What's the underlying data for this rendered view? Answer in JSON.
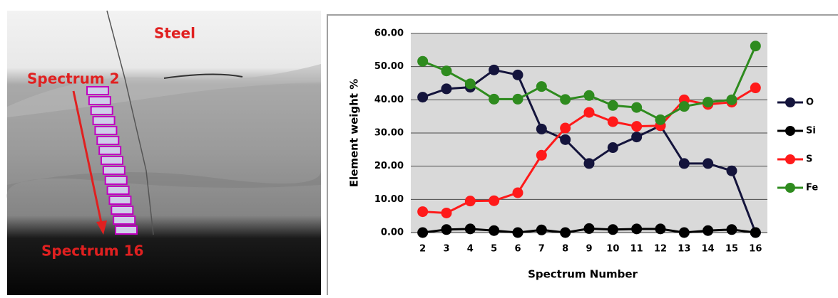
{
  "image": {
    "labels": [
      "Steel",
      "Spectrum 2",
      "Spectrum 16"
    ]
  },
  "chart_data": {
    "type": "line",
    "x_label": "Spectrum Number",
    "y_label": "Element weight %",
    "categories": [
      "2",
      "3",
      "4",
      "5",
      "6",
      "7",
      "8",
      "9",
      "10",
      "11",
      "12",
      "13",
      "14",
      "15",
      "16"
    ],
    "series": [
      {
        "name": "O",
        "color": "#14143c",
        "values": [
          40.8,
          43.3,
          43.8,
          49,
          47.5,
          31.2,
          28,
          20.8,
          25.6,
          28.8,
          32.2,
          20.8,
          20.8,
          18.6,
          0
        ]
      },
      {
        "name": "Si",
        "color": "#000000",
        "values": [
          0,
          0.9,
          1.1,
          0.6,
          0,
          0.8,
          0,
          1.2,
          0.9,
          1.1,
          1.1,
          0,
          0.6,
          0.9,
          0
        ]
      },
      {
        "name": "S",
        "color": "#ff1a1a",
        "values": [
          6.3,
          5.9,
          9.5,
          9.6,
          12,
          23.3,
          31.5,
          36.2,
          33.4,
          32,
          32.2,
          40,
          38.6,
          39.3,
          43.6
        ]
      },
      {
        "name": "Fe",
        "color": "#2e8b1e",
        "values": [
          51.6,
          48.7,
          44.8,
          40.2,
          40.2,
          44,
          40.1,
          41.3,
          38.3,
          37.7,
          34,
          38,
          39.3,
          40,
          56.2
        ]
      }
    ],
    "ylim": [
      0,
      60
    ],
    "yticks": [
      {
        "value": 0,
        "label": "0.00"
      },
      {
        "value": 10,
        "label": "10.00"
      },
      {
        "value": 20,
        "label": "20.00"
      },
      {
        "value": 30,
        "label": "30.00"
      },
      {
        "value": 40,
        "label": "40.00"
      },
      {
        "value": 50,
        "label": "50.00"
      },
      {
        "value": 60,
        "label": "60.00"
      }
    ],
    "grid": true,
    "legend": "right"
  }
}
